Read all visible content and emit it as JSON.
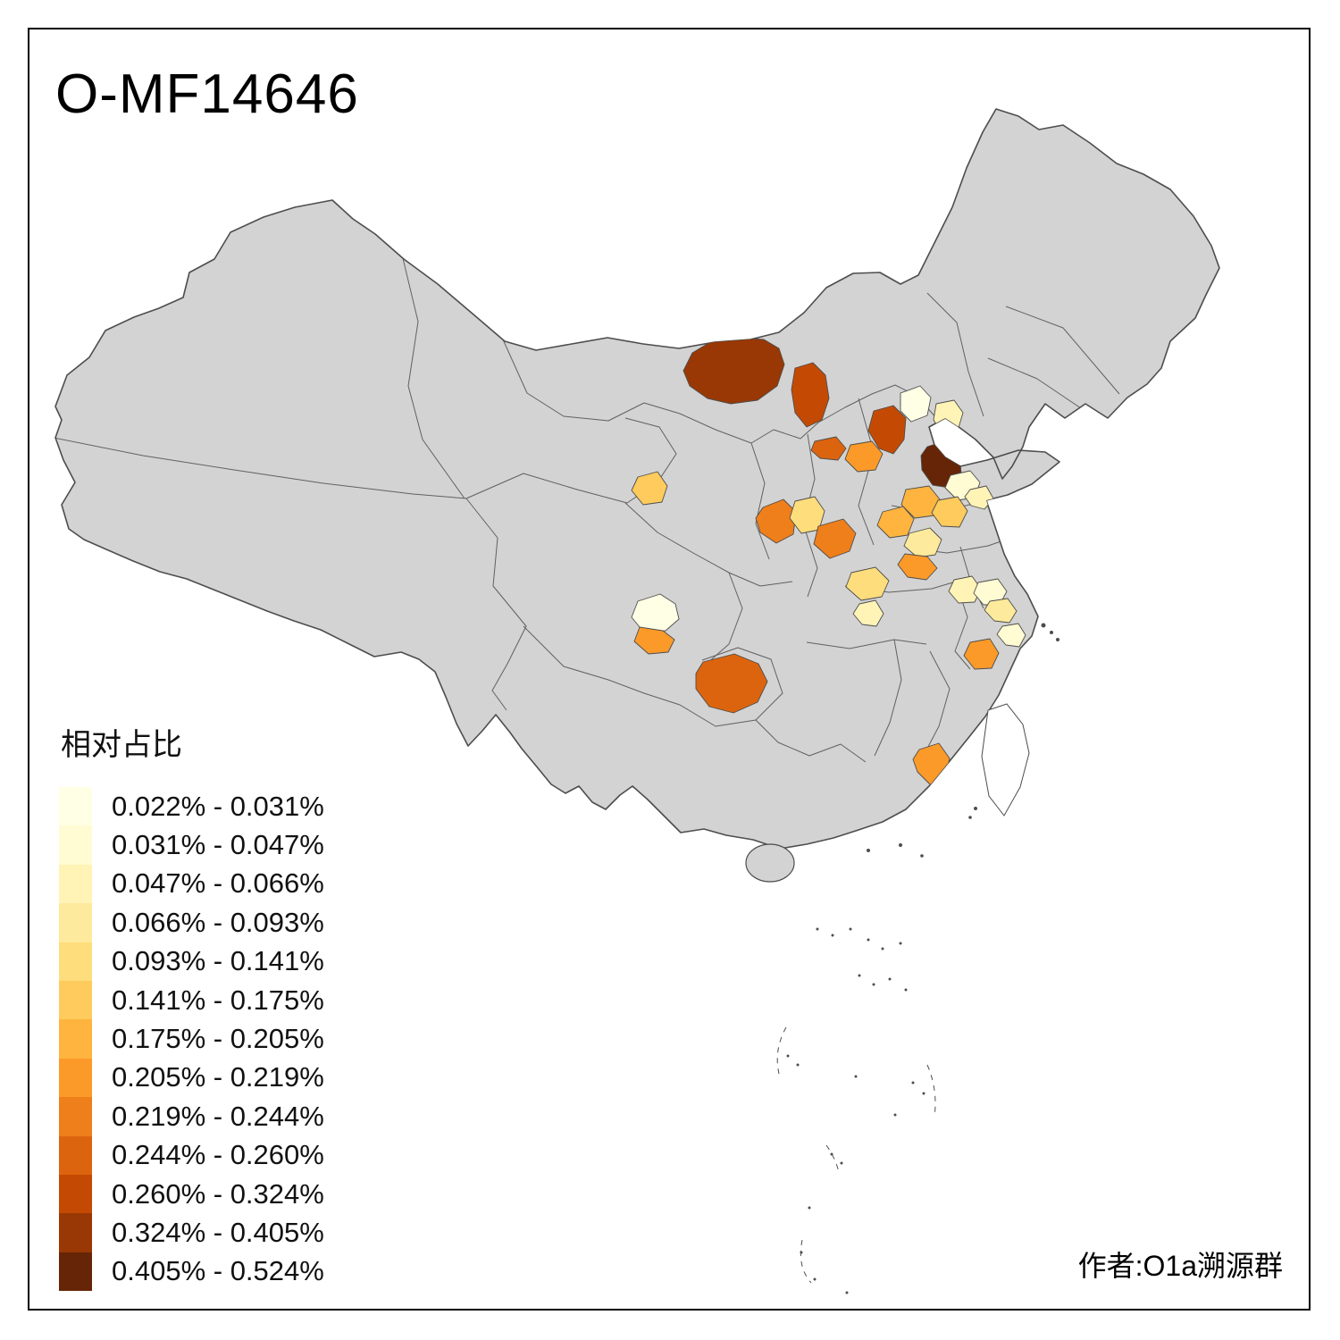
{
  "page": {
    "title": "O-MF14646",
    "author": "作者:O1a溯源群"
  },
  "legend": {
    "title": "相对占比",
    "items": [
      {
        "range": "0.022% - 0.031%",
        "color": "#ffffe5"
      },
      {
        "range": "0.031% - 0.047%",
        "color": "#fffbd2"
      },
      {
        "range": "0.047% - 0.066%",
        "color": "#fff3b6"
      },
      {
        "range": "0.066% - 0.093%",
        "color": "#feea9c"
      },
      {
        "range": "0.093% - 0.141%",
        "color": "#fedd7c"
      },
      {
        "range": "0.141% - 0.175%",
        "color": "#fecb5c"
      },
      {
        "range": "0.175% - 0.205%",
        "color": "#feb43e"
      },
      {
        "range": "0.205% - 0.219%",
        "color": "#fb9a29"
      },
      {
        "range": "0.219% - 0.244%",
        "color": "#ee7f1a"
      },
      {
        "range": "0.244% - 0.260%",
        "color": "#dd640e"
      },
      {
        "range": "0.260% - 0.324%",
        "color": "#c44a03"
      },
      {
        "range": "0.324% - 0.405%",
        "color": "#993804"
      },
      {
        "range": "0.405% - 0.524%",
        "color": "#662506"
      }
    ]
  },
  "map": {
    "base_fill": "#d3d3d3",
    "border_color": "#4d4d4d",
    "island_fill": "#ffffff",
    "regions": [
      {
        "color": "#993804"
      },
      {
        "color": "#c44a03"
      },
      {
        "color": "#ffffe5"
      },
      {
        "color": "#fff3b6"
      },
      {
        "color": "#c44a03"
      },
      {
        "color": "#dd640e"
      },
      {
        "color": "#fb9a29"
      },
      {
        "color": "#662506"
      },
      {
        "color": "#fffbd2"
      },
      {
        "color": "#fff3b6"
      },
      {
        "color": "#feb43e"
      },
      {
        "color": "#fecb5c"
      },
      {
        "color": "#fecb5c"
      },
      {
        "color": "#ee7f1a"
      },
      {
        "color": "#fedd7c"
      },
      {
        "color": "#ee7f1a"
      },
      {
        "color": "#feb43e"
      },
      {
        "color": "#feea9c"
      },
      {
        "color": "#fb9a29"
      },
      {
        "color": "#fedd7c"
      },
      {
        "color": "#fff3b6"
      },
      {
        "color": "#fff3b6"
      },
      {
        "color": "#fffbd2"
      },
      {
        "color": "#feea9c"
      },
      {
        "color": "#fffbd2"
      },
      {
        "color": "#fb9a29"
      },
      {
        "color": "#ffffe5"
      },
      {
        "color": "#fb9a29"
      },
      {
        "color": "#dd640e"
      },
      {
        "color": "#fb9a29"
      }
    ]
  }
}
